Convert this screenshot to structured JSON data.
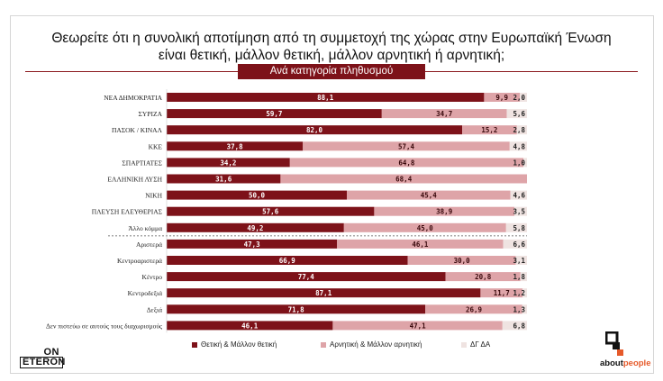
{
  "title_line1": "Θεωρείτε ότι η συνολική αποτίμηση από τη συμμετοχή της χώρας στην Ευρωπαϊκή Ένωση",
  "title_line2": "είναι θετική, μάλλον θετική, μάλλον αρνητική ή αρνητική;",
  "subtitle": "Ανά κατηγορία πληθυσμού",
  "colors": {
    "positive": "#7d1219",
    "negative": "#dea4a8",
    "dk": "#efe3e1",
    "rule": "#8b1a1f",
    "accent": "#e65a2a"
  },
  "chart_data": {
    "type": "bar",
    "orientation": "horizontal",
    "stacked": true,
    "categories": [
      "ΝΕΑ ΔΗΜΟΚΡΑΤΙΑ",
      "ΣΥΡΙΖΑ",
      "ΠΑΣΟΚ / ΚΙΝΑΛ",
      "ΚΚΕ",
      "ΣΠΑΡΤΙΑΤΕΣ",
      "ΕΛΛΗΝΙΚΗ ΛΥΣΗ",
      "ΝΙΚΗ",
      "ΠΛΕΥΣΗ ΕΛΕΥΘΕΡΙΑΣ",
      "Άλλο κόμμα",
      "Αριστερά",
      "Κεντροαριστερά",
      "Κέντρο",
      "Κεντροδεξιά",
      "Δεξιά",
      "Δεν πιστεύω σε αυτούς τους διαχωρισμούς"
    ],
    "group_break_after": 8,
    "series": [
      {
        "name": "Θετική & Μάλλον θετική",
        "values": [
          88.1,
          59.7,
          82.0,
          37.8,
          34.2,
          31.6,
          50.0,
          57.6,
          49.2,
          47.3,
          66.9,
          77.4,
          87.1,
          71.8,
          46.1
        ],
        "labels": [
          "88,1",
          "59,7",
          "82,0",
          "37,8",
          "34,2",
          "31,6",
          "50,0",
          "57,6",
          "49,2",
          "47,3",
          "66,9",
          "77,4",
          "87,1",
          "71,8",
          "46,1"
        ]
      },
      {
        "name": "Αρνητική & Μάλλον αρνητική",
        "values": [
          9.9,
          34.7,
          15.2,
          57.4,
          64.8,
          68.4,
          45.4,
          38.9,
          45.0,
          46.1,
          30.0,
          20.8,
          11.7,
          26.9,
          47.1
        ],
        "labels": [
          "9,9",
          "34,7",
          "15,2",
          "57,4",
          "64,8",
          "68,4",
          "45,4",
          "38,9",
          "45,0",
          "46,1",
          "30,0",
          "20,8",
          "11,7",
          "26,9",
          "47,1"
        ]
      },
      {
        "name": "ΔΓ ΔΑ",
        "values": [
          2.0,
          5.6,
          2.8,
          4.8,
          1.0,
          0.0,
          4.6,
          3.5,
          5.8,
          6.6,
          3.1,
          1.8,
          1.2,
          1.3,
          6.8
        ],
        "labels": [
          "2,0",
          "5,6",
          "2,8",
          "4,8",
          "1,0",
          "",
          "4,6",
          "3,5",
          "5,8",
          "6,6",
          "3,1",
          "1,8",
          "1,2",
          "1,3",
          "6,8"
        ]
      }
    ],
    "xlim": [
      0,
      100
    ],
    "legend_position": "bottom"
  },
  "logos": {
    "left_top": "ON",
    "left_bottom": "ETERON",
    "right_prefix": "about",
    "right_suffix": "people"
  }
}
